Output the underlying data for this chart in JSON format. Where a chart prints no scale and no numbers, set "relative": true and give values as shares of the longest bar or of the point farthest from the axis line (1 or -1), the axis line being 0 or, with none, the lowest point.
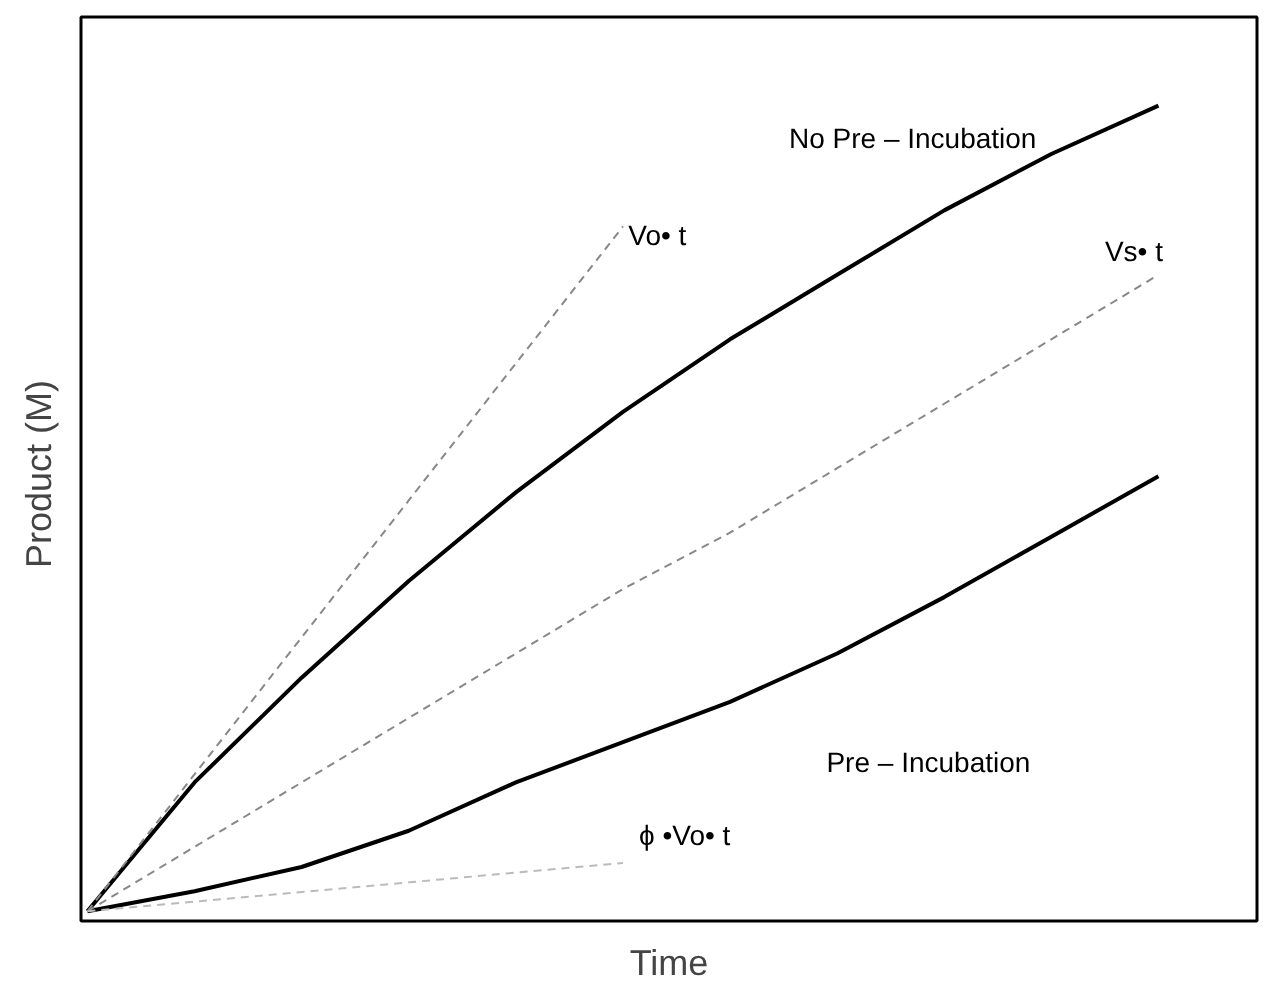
{
  "chart_data": {
    "type": "line",
    "relative": true,
    "xlabel": "Time",
    "ylabel": "Product  (M)",
    "legend": false,
    "grid": false,
    "categories": [
      null,
      null,
      null,
      null,
      null,
      null,
      null,
      null,
      null,
      null,
      null
    ],
    "series": [
      {
        "name": "No  Pre – Incubation",
        "color": "#000000",
        "line_style": "solid",
        "values": [
          0,
          0.16,
          0.29,
          0.41,
          0.52,
          0.62,
          0.71,
          0.79,
          0.87,
          0.94,
          1.0
        ]
      },
      {
        "name": "Pre – Incubation",
        "color": "#000000",
        "line_style": "solid",
        "values": [
          0,
          0.025,
          0.055,
          0.1,
          0.16,
          0.21,
          0.26,
          0.32,
          0.39,
          0.465,
          0.54
        ]
      },
      {
        "name": "Vo• t",
        "color": "#888888",
        "line_style": "dashed",
        "values": [
          0,
          0.17,
          0.34,
          0.51,
          0.68,
          0.85,
          null,
          null,
          null,
          null,
          null
        ]
      },
      {
        "name": "Vs• t",
        "color": "#888888",
        "line_style": "dashed",
        "values": [
          0,
          0.08,
          0.16,
          0.24,
          0.32,
          0.4,
          0.47,
          0.55,
          0.63,
          0.71,
          0.79
        ]
      },
      {
        "name": "ϕ •Vo• t",
        "color": "#bbbbbb",
        "line_style": "dashed",
        "values": [
          0,
          0.012,
          0.024,
          0.036,
          0.048,
          0.06,
          null,
          null,
          null,
          null,
          null
        ]
      }
    ]
  }
}
